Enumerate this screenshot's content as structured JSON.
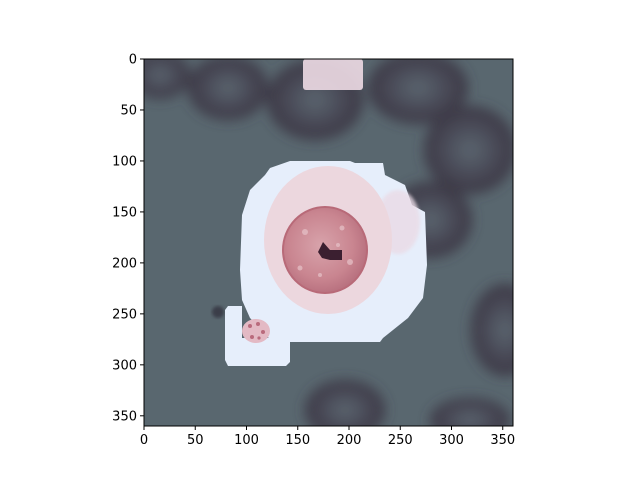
{
  "figure": {
    "background": "#ffffff",
    "x_axis": {
      "ticks": [
        0,
        50,
        100,
        150,
        200,
        250,
        300,
        350
      ],
      "limits": [
        0,
        360
      ]
    },
    "y_axis": {
      "ticks": [
        0,
        50,
        100,
        150,
        200,
        250,
        300,
        350
      ],
      "limits": [
        360,
        0
      ],
      "inverted": true
    }
  },
  "image_content": {
    "description_colors": {
      "background": "#58666e",
      "red_cell": "#3e3a46",
      "mask_overlay": "#e9f0fb",
      "cell_cytoplasm": "#ead6de",
      "cell_nucleus": "#c9858f",
      "dark_spot": "#3a2030"
    }
  }
}
